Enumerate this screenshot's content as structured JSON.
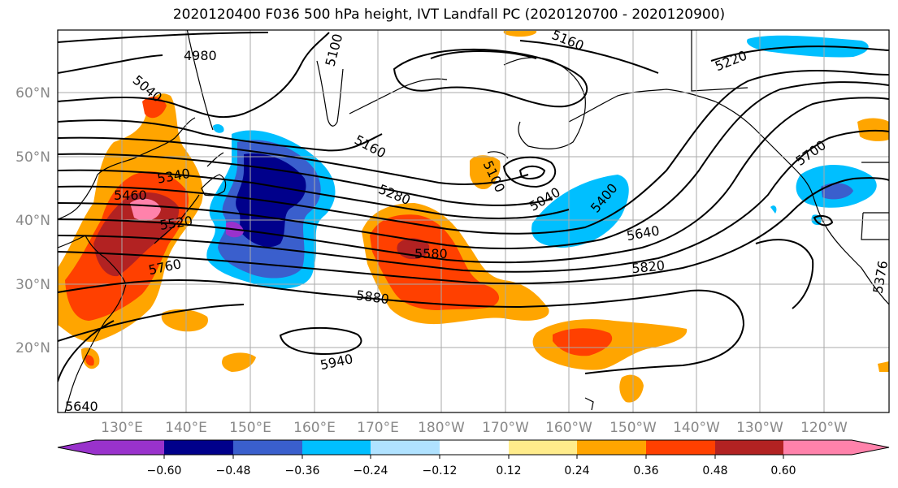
{
  "title": "2020120400 F036 500 hPa height, IVT Landfall PC (2020120700 - 2020120900)",
  "map": {
    "lon_labels": [
      "130°E",
      "140°E",
      "150°E",
      "160°E",
      "170°E",
      "180°W",
      "170°W",
      "160°W",
      "150°W",
      "140°W",
      "130°W",
      "120°W"
    ],
    "lat_labels": [
      "60°N",
      "50°N",
      "40°N",
      "30°N",
      "20°N"
    ],
    "contour_labels": [
      "4980",
      "5040",
      "5100",
      "5160",
      "5220",
      "5160",
      "5100",
      "5040",
      "5400",
      "5340",
      "5460",
      "5520",
      "5760",
      "5280",
      "5580",
      "5640",
      "5820",
      "5880",
      "5940",
      "5700",
      "5376",
      "5640"
    ]
  },
  "colorbar": {
    "ticks": [
      "−0.60",
      "−0.48",
      "−0.36",
      "−0.24",
      "−0.12",
      "0.12",
      "0.24",
      "0.36",
      "0.48",
      "0.60"
    ],
    "colors": [
      "#9932cc",
      "#00008b",
      "#3a5fcd",
      "#00bfff",
      "#b0e2ff",
      "#ffffff",
      "#ffec8b",
      "#ffa500",
      "#ff4000",
      "#b22222",
      "#ff82ab",
      "#ff82ab"
    ]
  }
}
